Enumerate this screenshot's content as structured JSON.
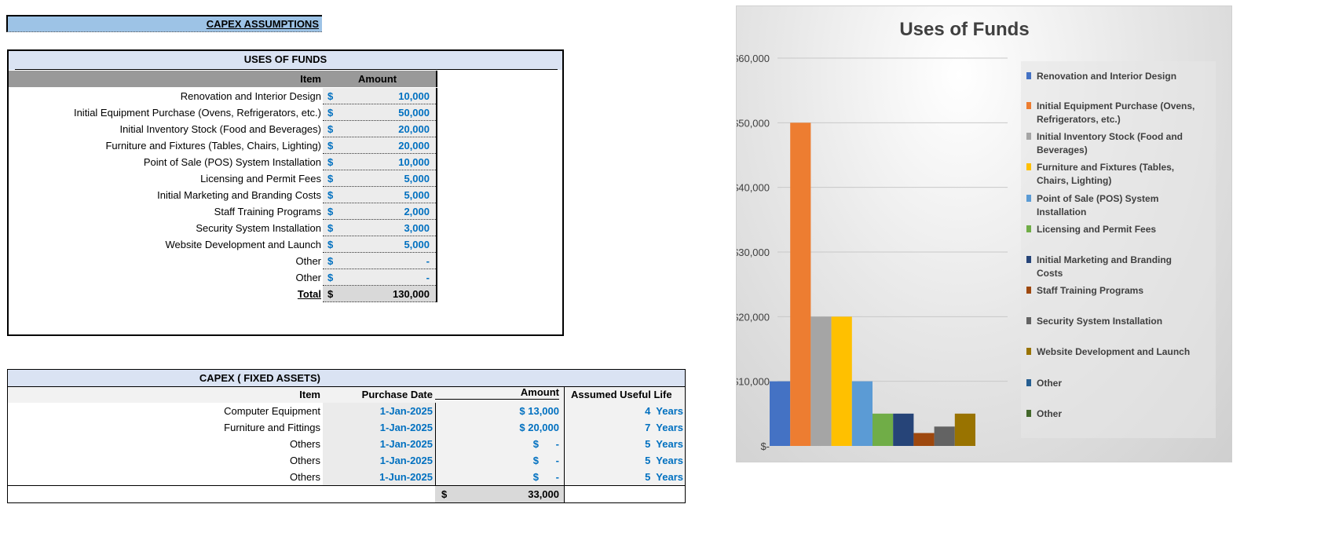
{
  "capex_title": "CAPEX ASSUMPTIONS",
  "uses_of_funds": {
    "title": "USES OF FUNDS",
    "headers": {
      "item": "Item",
      "amount": "Amount"
    },
    "currency": "$",
    "rows": [
      {
        "item": "Renovation and Interior Design",
        "amount": "10,000"
      },
      {
        "item": "Initial Equipment Purchase (Ovens, Refrigerators, etc.)",
        "amount": "50,000"
      },
      {
        "item": "Initial Inventory Stock (Food and Beverages)",
        "amount": "20,000"
      },
      {
        "item": "Furniture and Fixtures (Tables, Chairs, Lighting)",
        "amount": "20,000"
      },
      {
        "item": "Point of Sale (POS) System Installation",
        "amount": "10,000"
      },
      {
        "item": "Licensing and Permit Fees",
        "amount": "5,000"
      },
      {
        "item": "Initial Marketing and Branding Costs",
        "amount": "5,000"
      },
      {
        "item": "Staff Training Programs",
        "amount": "2,000"
      },
      {
        "item": "Security System Installation",
        "amount": "3,000"
      },
      {
        "item": "Website Development and Launch",
        "amount": "5,000"
      },
      {
        "item": "Other",
        "amount": "-"
      },
      {
        "item": "Other",
        "amount": "-"
      }
    ],
    "total": {
      "label": "Total",
      "amount": "130,000"
    }
  },
  "fixed_assets": {
    "title": "CAPEX ( FIXED ASSETS)",
    "headers": {
      "item": "Item",
      "date": "Purchase Date",
      "amount": "Amount",
      "life": "Assumed Useful Life"
    },
    "rows": [
      {
        "item": "Computer Equipment",
        "date": "1-Jan-2025",
        "amount": "$ 13,000",
        "life": "4  Years"
      },
      {
        "item": "Furniture and Fittings",
        "date": "1-Jan-2025",
        "amount": "$ 20,000",
        "life": "7  Years"
      },
      {
        "item": "Others",
        "date": "1-Jan-2025",
        "amount": "$      -",
        "life": "5  Years"
      },
      {
        "item": "Others",
        "date": "1-Jan-2025",
        "amount": "$      -",
        "life": "5  Years"
      },
      {
        "item": "Others",
        "date": "1-Jun-2025",
        "amount": "$      -",
        "life": "5  Years"
      }
    ],
    "total": {
      "currency": "$",
      "amount": "33,000"
    }
  },
  "chart_data": {
    "type": "bar",
    "title": "Uses of Funds",
    "ylim": [
      0,
      60000
    ],
    "yticks": [
      "$-",
      "$10,000",
      "$20,000",
      "$30,000",
      "$40,000",
      "$50,000",
      "$60,000"
    ],
    "grid": true,
    "legend_position": "right",
    "series": [
      {
        "name": "Renovation and Interior Design",
        "value": 10000,
        "color": "#4472c4"
      },
      {
        "name": "Initial Equipment Purchase (Ovens, Refrigerators, etc.)",
        "value": 50000,
        "color": "#ed7d31"
      },
      {
        "name": "Initial Inventory Stock (Food and Beverages)",
        "value": 20000,
        "color": "#a5a5a5"
      },
      {
        "name": "Furniture and Fixtures (Tables, Chairs, Lighting)",
        "value": 20000,
        "color": "#ffc000"
      },
      {
        "name": "Point of Sale (POS) System Installation",
        "value": 10000,
        "color": "#5b9bd5"
      },
      {
        "name": "Licensing and Permit Fees",
        "value": 5000,
        "color": "#70ad47"
      },
      {
        "name": "Initial Marketing and Branding Costs",
        "value": 5000,
        "color": "#264478"
      },
      {
        "name": "Staff Training Programs",
        "value": 2000,
        "color": "#9e480e"
      },
      {
        "name": "Security System Installation",
        "value": 3000,
        "color": "#636363"
      },
      {
        "name": "Website Development and Launch",
        "value": 5000,
        "color": "#997300"
      },
      {
        "name": "Other",
        "value": 0,
        "color": "#255e91"
      },
      {
        "name": "Other",
        "value": 0,
        "color": "#43682b"
      }
    ]
  }
}
